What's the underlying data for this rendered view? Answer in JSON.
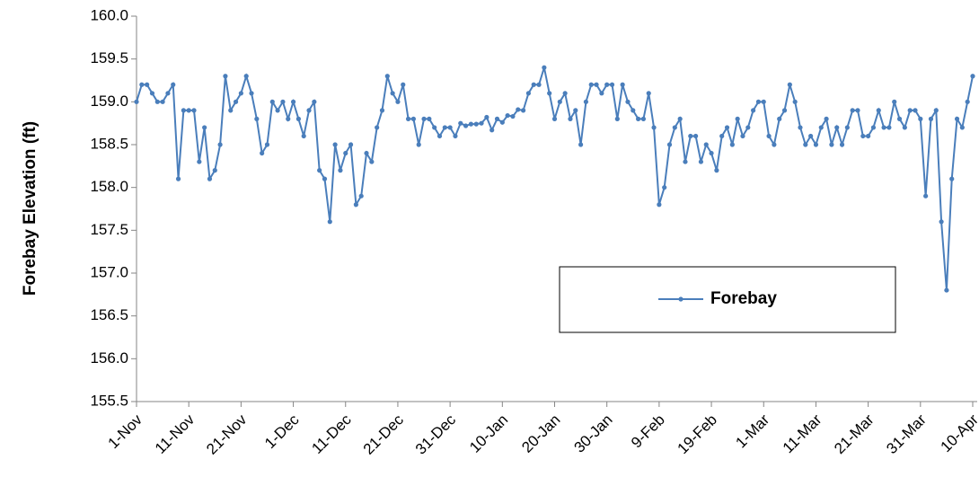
{
  "chart_data": {
    "type": "line",
    "y_label": "Forebay Elevation (ft)",
    "categories": [
      "1-Nov",
      null,
      null,
      null,
      null,
      null,
      null,
      null,
      null,
      null,
      "11-Nov",
      null,
      null,
      null,
      null,
      null,
      null,
      null,
      null,
      null,
      "21-Nov",
      null,
      null,
      null,
      null,
      null,
      null,
      null,
      null,
      null,
      "1-Dec",
      null,
      null,
      null,
      null,
      null,
      null,
      null,
      null,
      null,
      "11-Dec",
      null,
      null,
      null,
      null,
      null,
      null,
      null,
      null,
      null,
      "21-Dec",
      null,
      null,
      null,
      null,
      null,
      null,
      null,
      null,
      null,
      "31-Dec",
      null,
      null,
      null,
      null,
      null,
      null,
      null,
      null,
      null,
      "10-Jan",
      null,
      null,
      null,
      null,
      null,
      null,
      null,
      null,
      null,
      "20-Jan",
      null,
      null,
      null,
      null,
      null,
      null,
      null,
      null,
      null,
      "30-Jan",
      null,
      null,
      null,
      null,
      null,
      null,
      null,
      null,
      null,
      "9-Feb",
      null,
      null,
      null,
      null,
      null,
      null,
      null,
      null,
      null,
      "19-Feb",
      null,
      null,
      null,
      null,
      null,
      null,
      null,
      null,
      null,
      "1-Mar",
      null,
      null,
      null,
      null,
      null,
      null,
      null,
      null,
      null,
      "11-Mar",
      null,
      null,
      null,
      null,
      null,
      null,
      null,
      null,
      null,
      "21-Mar",
      null,
      null,
      null,
      null,
      null,
      null,
      null,
      null,
      null,
      "31-Mar",
      null,
      null,
      null,
      null,
      null,
      null,
      null,
      null,
      null,
      "10-Apr"
    ],
    "series": [
      {
        "name": "Forebay",
        "color": "#4a7ebb",
        "values": [
          159.0,
          159.2,
          159.2,
          159.1,
          159.0,
          159.0,
          159.1,
          159.2,
          158.1,
          158.9,
          158.9,
          158.9,
          158.3,
          158.7,
          158.1,
          158.2,
          158.5,
          159.3,
          158.9,
          159.0,
          159.1,
          159.3,
          159.1,
          158.8,
          158.4,
          158.5,
          159.0,
          158.9,
          159.0,
          158.8,
          159.0,
          158.8,
          158.6,
          158.9,
          159.0,
          158.2,
          158.1,
          157.6,
          158.5,
          158.2,
          158.4,
          158.5,
          157.8,
          157.9,
          158.4,
          158.3,
          158.7,
          158.9,
          159.3,
          159.1,
          159.0,
          159.2,
          158.8,
          158.8,
          158.5,
          158.8,
          158.8,
          158.7,
          158.6,
          158.7,
          158.7,
          158.6,
          158.75,
          158.72,
          158.74,
          158.74,
          158.75,
          158.82,
          158.67,
          158.8,
          158.76,
          158.84,
          158.83,
          158.91,
          158.9,
          159.1,
          159.2,
          159.2,
          159.4,
          159.1,
          158.8,
          159.0,
          159.1,
          158.8,
          158.9,
          158.5,
          159.0,
          159.2,
          159.2,
          159.1,
          159.2,
          159.2,
          158.8,
          159.2,
          159.0,
          158.9,
          158.8,
          158.8,
          159.1,
          158.7,
          157.8,
          158.0,
          158.5,
          158.7,
          158.8,
          158.3,
          158.6,
          158.6,
          158.3,
          158.5,
          158.4,
          158.2,
          158.6,
          158.7,
          158.5,
          158.8,
          158.6,
          158.7,
          158.9,
          159.0,
          159.0,
          158.6,
          158.5,
          158.8,
          158.9,
          159.2,
          159.0,
          158.7,
          158.5,
          158.6,
          158.5,
          158.7,
          158.8,
          158.5,
          158.7,
          158.5,
          158.7,
          158.9,
          158.9,
          158.6,
          158.6,
          158.7,
          158.9,
          158.7,
          158.7,
          159.0,
          158.8,
          158.7,
          158.9,
          158.9,
          158.8,
          157.9,
          158.8,
          158.9,
          157.6,
          156.8,
          158.1,
          158.8,
          158.7,
          159.0,
          159.3
        ]
      }
    ],
    "ylim": [
      155.5,
      160.0
    ],
    "yticks": [
      {
        "value": 155.5,
        "label": "155.5"
      },
      {
        "value": 156,
        "label": "156.0"
      },
      {
        "value": 156.5,
        "label": "156.5"
      },
      {
        "value": 157,
        "label": "157.0"
      },
      {
        "value": 157.5,
        "label": "157.5"
      },
      {
        "value": 158,
        "label": "158.0"
      },
      {
        "value": 158.5,
        "label": "158.5"
      },
      {
        "value": 159,
        "label": "159.0"
      },
      {
        "value": 159.5,
        "label": "159.5"
      },
      {
        "value": 160,
        "label": "160.0"
      }
    ],
    "grid": false
  }
}
